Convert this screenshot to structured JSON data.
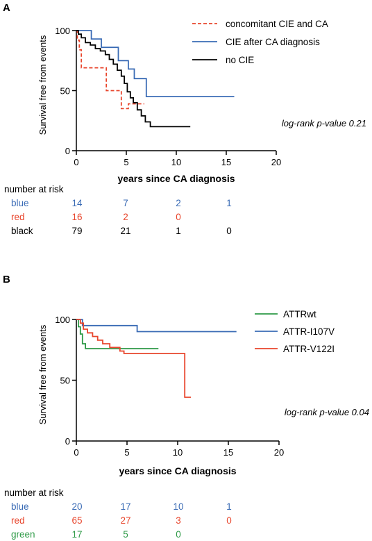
{
  "chart_data": [
    {
      "panel": "A",
      "type": "line",
      "step": true,
      "xlabel": "years since CA diagnosis",
      "ylabel": "Survival free from events",
      "xlim": [
        0,
        20
      ],
      "ylim": [
        0,
        100
      ],
      "xticks": [
        "0",
        "5",
        "10",
        "15",
        "20"
      ],
      "yticks": [
        "0",
        "50",
        "100"
      ],
      "annotation": "log-rank p-value 0.21",
      "legend_position": "top-right",
      "colors": {
        "red": "#e8452c",
        "blue": "#3a6bb5",
        "black": "#000000"
      },
      "series": [
        {
          "name": "concomitant CIE and CA",
          "color": "red",
          "dashed": true,
          "points": [
            [
              0,
              100
            ],
            [
              0.1,
              92
            ],
            [
              0.3,
              84
            ],
            [
              0.5,
              69
            ],
            [
              3,
              69
            ],
            [
              3,
              50
            ],
            [
              4.5,
              50
            ],
            [
              4.5,
              35
            ],
            [
              5.2,
              35
            ],
            [
              5.2,
              39
            ],
            [
              6.8,
              39
            ]
          ]
        },
        {
          "name": "CIE after CA diagnosis",
          "color": "blue",
          "dashed": false,
          "points": [
            [
              0,
              100
            ],
            [
              1.5,
              100
            ],
            [
              1.5,
              93
            ],
            [
              2.5,
              93
            ],
            [
              2.5,
              86
            ],
            [
              4.2,
              86
            ],
            [
              4.2,
              75
            ],
            [
              5.2,
              75
            ],
            [
              5.2,
              68
            ],
            [
              5.8,
              68
            ],
            [
              5.8,
              60
            ],
            [
              7,
              60
            ],
            [
              7,
              45
            ],
            [
              15.8,
              45
            ]
          ]
        },
        {
          "name": "no CIE",
          "color": "black",
          "dashed": false,
          "points": [
            [
              0,
              100
            ],
            [
              0.2,
              97
            ],
            [
              0.5,
              94
            ],
            [
              0.9,
              90
            ],
            [
              1.4,
              88
            ],
            [
              1.9,
              85
            ],
            [
              2.4,
              83
            ],
            [
              2.9,
              80
            ],
            [
              3.3,
              76
            ],
            [
              3.7,
              72
            ],
            [
              4.1,
              67
            ],
            [
              4.5,
              62
            ],
            [
              4.8,
              56
            ],
            [
              5.1,
              49
            ],
            [
              5.4,
              44
            ],
            [
              5.7,
              40
            ],
            [
              6.1,
              34
            ],
            [
              6.5,
              29
            ],
            [
              6.9,
              24
            ],
            [
              7.4,
              20
            ],
            [
              11.4,
              20
            ]
          ]
        }
      ],
      "risk_table": {
        "title": "number at risk",
        "rows": [
          {
            "label": "blue",
            "color": "blue",
            "values": [
              "14",
              "7",
              "2",
              "1"
            ]
          },
          {
            "label": "red",
            "color": "red",
            "values": [
              "16",
              "2",
              "0",
              ""
            ]
          },
          {
            "label": "black",
            "color": "black",
            "values": [
              "79",
              "21",
              "1",
              "0"
            ]
          }
        ]
      }
    },
    {
      "panel": "B",
      "type": "line",
      "step": true,
      "xlabel": "years since CA diagnosis",
      "ylabel": "Survival free from events",
      "xlim": [
        0,
        20
      ],
      "ylim": [
        0,
        100
      ],
      "xticks": [
        "0",
        "5",
        "10",
        "15",
        "20"
      ],
      "yticks": [
        "0",
        "50",
        "100"
      ],
      "annotation": "log-rank p-value 0.04",
      "legend_position": "top-right",
      "colors": {
        "green": "#2e9a47",
        "blue": "#3a6bb5",
        "red": "#e8452c"
      },
      "series": [
        {
          "name": "ATTRwt",
          "color": "green",
          "dashed": false,
          "points": [
            [
              0,
              100
            ],
            [
              0.2,
              94
            ],
            [
              0.4,
              88
            ],
            [
              0.6,
              80
            ],
            [
              0.9,
              76
            ],
            [
              8.1,
              76
            ]
          ]
        },
        {
          "name": "ATTR-I107V",
          "color": "blue",
          "dashed": false,
          "points": [
            [
              0,
              100
            ],
            [
              0.6,
              100
            ],
            [
              0.6,
              95
            ],
            [
              6,
              95
            ],
            [
              6,
              90
            ],
            [
              15.8,
              90
            ]
          ]
        },
        {
          "name": "ATTR-V122I",
          "color": "red",
          "dashed": false,
          "points": [
            [
              0,
              100
            ],
            [
              0.4,
              97
            ],
            [
              0.7,
              92
            ],
            [
              1.1,
              89
            ],
            [
              1.6,
              86
            ],
            [
              2.1,
              83
            ],
            [
              2.6,
              80
            ],
            [
              3.3,
              77
            ],
            [
              4.3,
              74
            ],
            [
              4.7,
              72
            ],
            [
              10.7,
              72
            ],
            [
              10.7,
              36
            ],
            [
              11.3,
              36
            ]
          ]
        }
      ],
      "risk_table": {
        "title": "number at risk",
        "rows": [
          {
            "label": "blue",
            "color": "blue",
            "values": [
              "20",
              "17",
              "10",
              "1"
            ]
          },
          {
            "label": "red",
            "color": "red",
            "values": [
              "65",
              "27",
              "3",
              "0"
            ]
          },
          {
            "label": "green",
            "color": "green",
            "values": [
              "17",
              "5",
              "0",
              ""
            ]
          }
        ]
      }
    }
  ]
}
